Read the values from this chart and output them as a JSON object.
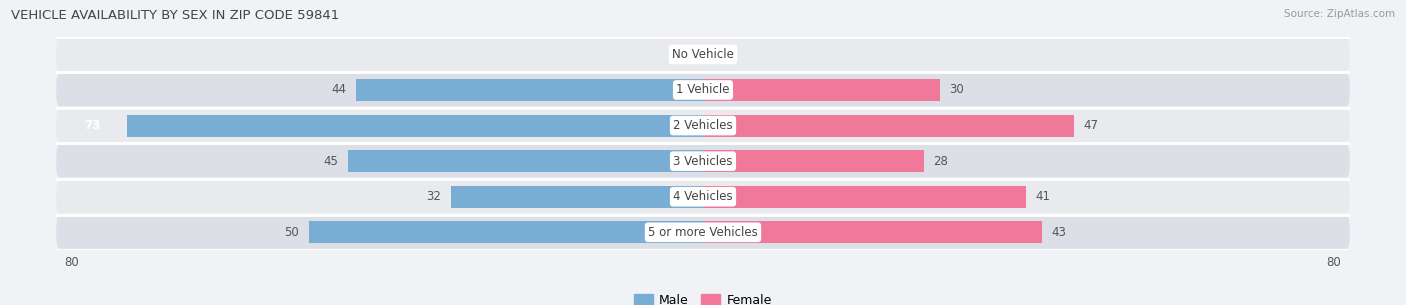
{
  "title": "VEHICLE AVAILABILITY BY SEX IN ZIP CODE 59841",
  "source": "Source: ZipAtlas.com",
  "categories": [
    "No Vehicle",
    "1 Vehicle",
    "2 Vehicles",
    "3 Vehicles",
    "4 Vehicles",
    "5 or more Vehicles"
  ],
  "male_values": [
    0,
    44,
    73,
    45,
    32,
    50
  ],
  "female_values": [
    0,
    30,
    47,
    28,
    41,
    43
  ],
  "male_color": "#7aadd4",
  "female_color": "#f07898",
  "male_label": "Male",
  "female_label": "Female",
  "xlim": 80,
  "bg_color": "#f0f2f5",
  "row_bg_light": "#e8eaee",
  "row_bg_dark": "#dcdfe5",
  "title_color": "#444444",
  "source_color": "#999999",
  "label_color": "#555555",
  "value_color": "#555555"
}
